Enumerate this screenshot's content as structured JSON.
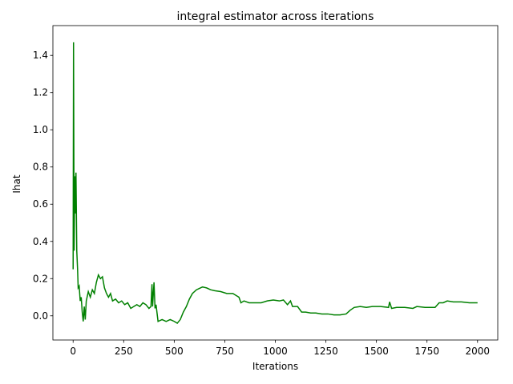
{
  "chart_data": {
    "type": "line",
    "title": "integral estimator across iterations",
    "xlabel": "Iterations",
    "ylabel": "Ihat",
    "xlim": [
      -100,
      2100
    ],
    "ylim": [
      -0.13,
      1.56
    ],
    "xticks": [
      0,
      250,
      500,
      750,
      1000,
      1250,
      1500,
      1750,
      2000
    ],
    "yticks": [
      {
        "value": 0,
        "label": "0.0"
      },
      0.2,
      0.4,
      0.6,
      0.8,
      {
        "value": 1,
        "label": "1.0"
      },
      1.2,
      1.4
    ],
    "grid": false,
    "series": [
      {
        "color": "#008000",
        "x": [
          0,
          2,
          5,
          8,
          10,
          14,
          18,
          22,
          25,
          30,
          35,
          40,
          45,
          50,
          55,
          60,
          65,
          75,
          85,
          95,
          105,
          115,
          125,
          135,
          145,
          155,
          165,
          175,
          185,
          195,
          210,
          225,
          240,
          255,
          270,
          285,
          300,
          315,
          330,
          345,
          360,
          375,
          385,
          390,
          393,
          400,
          405,
          410,
          420,
          440,
          460,
          480,
          500,
          515,
          530,
          545,
          560,
          575,
          590,
          610,
          640,
          660,
          680,
          700,
          730,
          760,
          790,
          820,
          830,
          845,
          870,
          900,
          930,
          960,
          990,
          1020,
          1040,
          1060,
          1075,
          1085,
          1110,
          1130,
          1150,
          1175,
          1200,
          1230,
          1260,
          1290,
          1320,
          1350,
          1370,
          1390,
          1420,
          1450,
          1480,
          1520,
          1560,
          1565,
          1575,
          1600,
          1640,
          1680,
          1700,
          1740,
          1790,
          1810,
          1830,
          1850,
          1880,
          1920,
          1960,
          2000
        ],
        "values": [
          0.25,
          1.47,
          0.35,
          0.75,
          0.55,
          0.77,
          0.35,
          0.25,
          0.15,
          0.16,
          0.08,
          0.1,
          0.02,
          -0.03,
          0.05,
          -0.02,
          0.08,
          0.13,
          0.1,
          0.14,
          0.12,
          0.18,
          0.22,
          0.2,
          0.21,
          0.15,
          0.12,
          0.1,
          0.12,
          0.08,
          0.09,
          0.07,
          0.08,
          0.06,
          0.07,
          0.04,
          0.05,
          0.06,
          0.05,
          0.07,
          0.06,
          0.04,
          0.05,
          0.17,
          0.05,
          0.18,
          0.04,
          0.06,
          -0.03,
          -0.02,
          -0.03,
          -0.02,
          -0.03,
          -0.04,
          -0.02,
          0.02,
          0.05,
          0.09,
          0.12,
          0.14,
          0.155,
          0.15,
          0.14,
          0.135,
          0.13,
          0.12,
          0.12,
          0.1,
          0.07,
          0.08,
          0.07,
          0.07,
          0.07,
          0.08,
          0.085,
          0.08,
          0.085,
          0.06,
          0.08,
          0.05,
          0.05,
          0.02,
          0.02,
          0.015,
          0.015,
          0.01,
          0.01,
          0.005,
          0.005,
          0.01,
          0.03,
          0.045,
          0.05,
          0.045,
          0.05,
          0.05,
          0.045,
          0.075,
          0.04,
          0.045,
          0.045,
          0.04,
          0.05,
          0.045,
          0.045,
          0.07,
          0.07,
          0.08,
          0.075,
          0.075,
          0.07,
          0.07
        ]
      }
    ]
  }
}
